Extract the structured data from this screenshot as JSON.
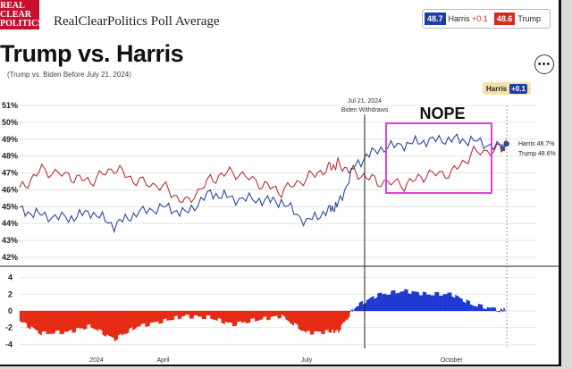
{
  "header": {
    "logo_text": "REAL\nCLEAR\nPOLITICS",
    "site_title": "RealClearPolitics Poll Average",
    "legend": [
      {
        "value": "48.7",
        "label": "Harris",
        "change": "+0.1",
        "color": "#1f3ea8"
      },
      {
        "value": "48.6",
        "label": "Trump",
        "change": "",
        "color": "#d52b1e"
      }
    ],
    "more_icon": "ellipsis-icon"
  },
  "title": "Trump vs. Harris",
  "subtitle": "(Trump vs. Biden Before July 21, 2024)",
  "badge": {
    "label": "Harris",
    "delta": "+0.1"
  },
  "annotation": {
    "date": "Jul 21, 2024",
    "event": "Biden Withdraws",
    "stamp": "NOPE",
    "stamp_color": "#e040e0"
  },
  "end_labels": {
    "harris": "Harris 48.7%",
    "trump": "Trump 48.6%"
  },
  "chart_data": [
    {
      "type": "line",
      "y_ticks": [
        "51%",
        "50%",
        "49%",
        "48%",
        "47%",
        "46%",
        "45%",
        "44%",
        "43%",
        "42%"
      ],
      "ylim": [
        42,
        51
      ],
      "x_range": [
        "2024-01-01",
        "2024-11-05"
      ],
      "grid": true,
      "series": [
        {
          "name": "Trump",
          "color": "#b8333a",
          "x": [
            "2024-01-01",
            "2024-01-15",
            "2024-02-01",
            "2024-02-15",
            "2024-03-01",
            "2024-03-15",
            "2024-04-01",
            "2024-04-15",
            "2024-05-01",
            "2024-05-15",
            "2024-06-01",
            "2024-06-15",
            "2024-07-01",
            "2024-07-15",
            "2024-07-21",
            "2024-08-01",
            "2024-08-15",
            "2024-09-01",
            "2024-09-15",
            "2024-10-01",
            "2024-10-15",
            "2024-11-01",
            "2024-11-05"
          ],
          "values": [
            46.0,
            47.2,
            46.8,
            46.5,
            47.3,
            46.5,
            46.2,
            45.2,
            46.6,
            47.1,
            46.4,
            45.9,
            46.7,
            47.3,
            47.5,
            47.0,
            46.5,
            46.3,
            46.9,
            47.0,
            48.2,
            48.4,
            48.6
          ]
        },
        {
          "name": "Harris",
          "color": "#2a4a9c",
          "x": [
            "2024-01-01",
            "2024-01-15",
            "2024-02-01",
            "2024-02-15",
            "2024-03-01",
            "2024-03-15",
            "2024-04-01",
            "2024-04-15",
            "2024-05-01",
            "2024-05-15",
            "2024-06-01",
            "2024-06-15",
            "2024-07-01",
            "2024-07-15",
            "2024-07-21",
            "2024-08-01",
            "2024-08-15",
            "2024-09-01",
            "2024-09-15",
            "2024-10-01",
            "2024-10-15",
            "2024-11-01",
            "2024-11-05"
          ],
          "values": [
            44.8,
            44.5,
            44.3,
            44.7,
            43.9,
            44.6,
            45.0,
            44.6,
            45.8,
            45.5,
            45.4,
            45.3,
            44.1,
            44.8,
            45.1,
            47.5,
            48.4,
            48.7,
            48.9,
            49.0,
            48.9,
            48.5,
            48.7
          ]
        }
      ]
    },
    {
      "type": "area",
      "y_ticks": [
        "4",
        "2",
        "0",
        "-2",
        "-4"
      ],
      "ylim": [
        -4.5,
        4.5
      ],
      "x_ticks": [
        "2024",
        "April",
        "July",
        "October"
      ],
      "series": [
        {
          "name": "Spread",
          "colors": {
            "positive": "#1f3ad0",
            "negative": "#e52b14"
          },
          "x": [
            "2024-01-01",
            "2024-01-15",
            "2024-02-01",
            "2024-02-15",
            "2024-03-01",
            "2024-03-15",
            "2024-04-01",
            "2024-04-15",
            "2024-05-01",
            "2024-05-15",
            "2024-06-01",
            "2024-06-15",
            "2024-07-01",
            "2024-07-15",
            "2024-07-21",
            "2024-08-01",
            "2024-08-15",
            "2024-09-01",
            "2024-09-15",
            "2024-10-01",
            "2024-10-15",
            "2024-11-01",
            "2024-11-05"
          ],
          "values": [
            -1.2,
            -2.7,
            -2.5,
            -1.8,
            -3.4,
            -1.9,
            -1.2,
            -0.6,
            -0.8,
            -1.6,
            -1.0,
            -0.6,
            -2.6,
            -2.5,
            -2.4,
            0.5,
            1.9,
            2.4,
            2.0,
            2.0,
            0.7,
            0.1,
            0.1
          ]
        }
      ]
    }
  ]
}
